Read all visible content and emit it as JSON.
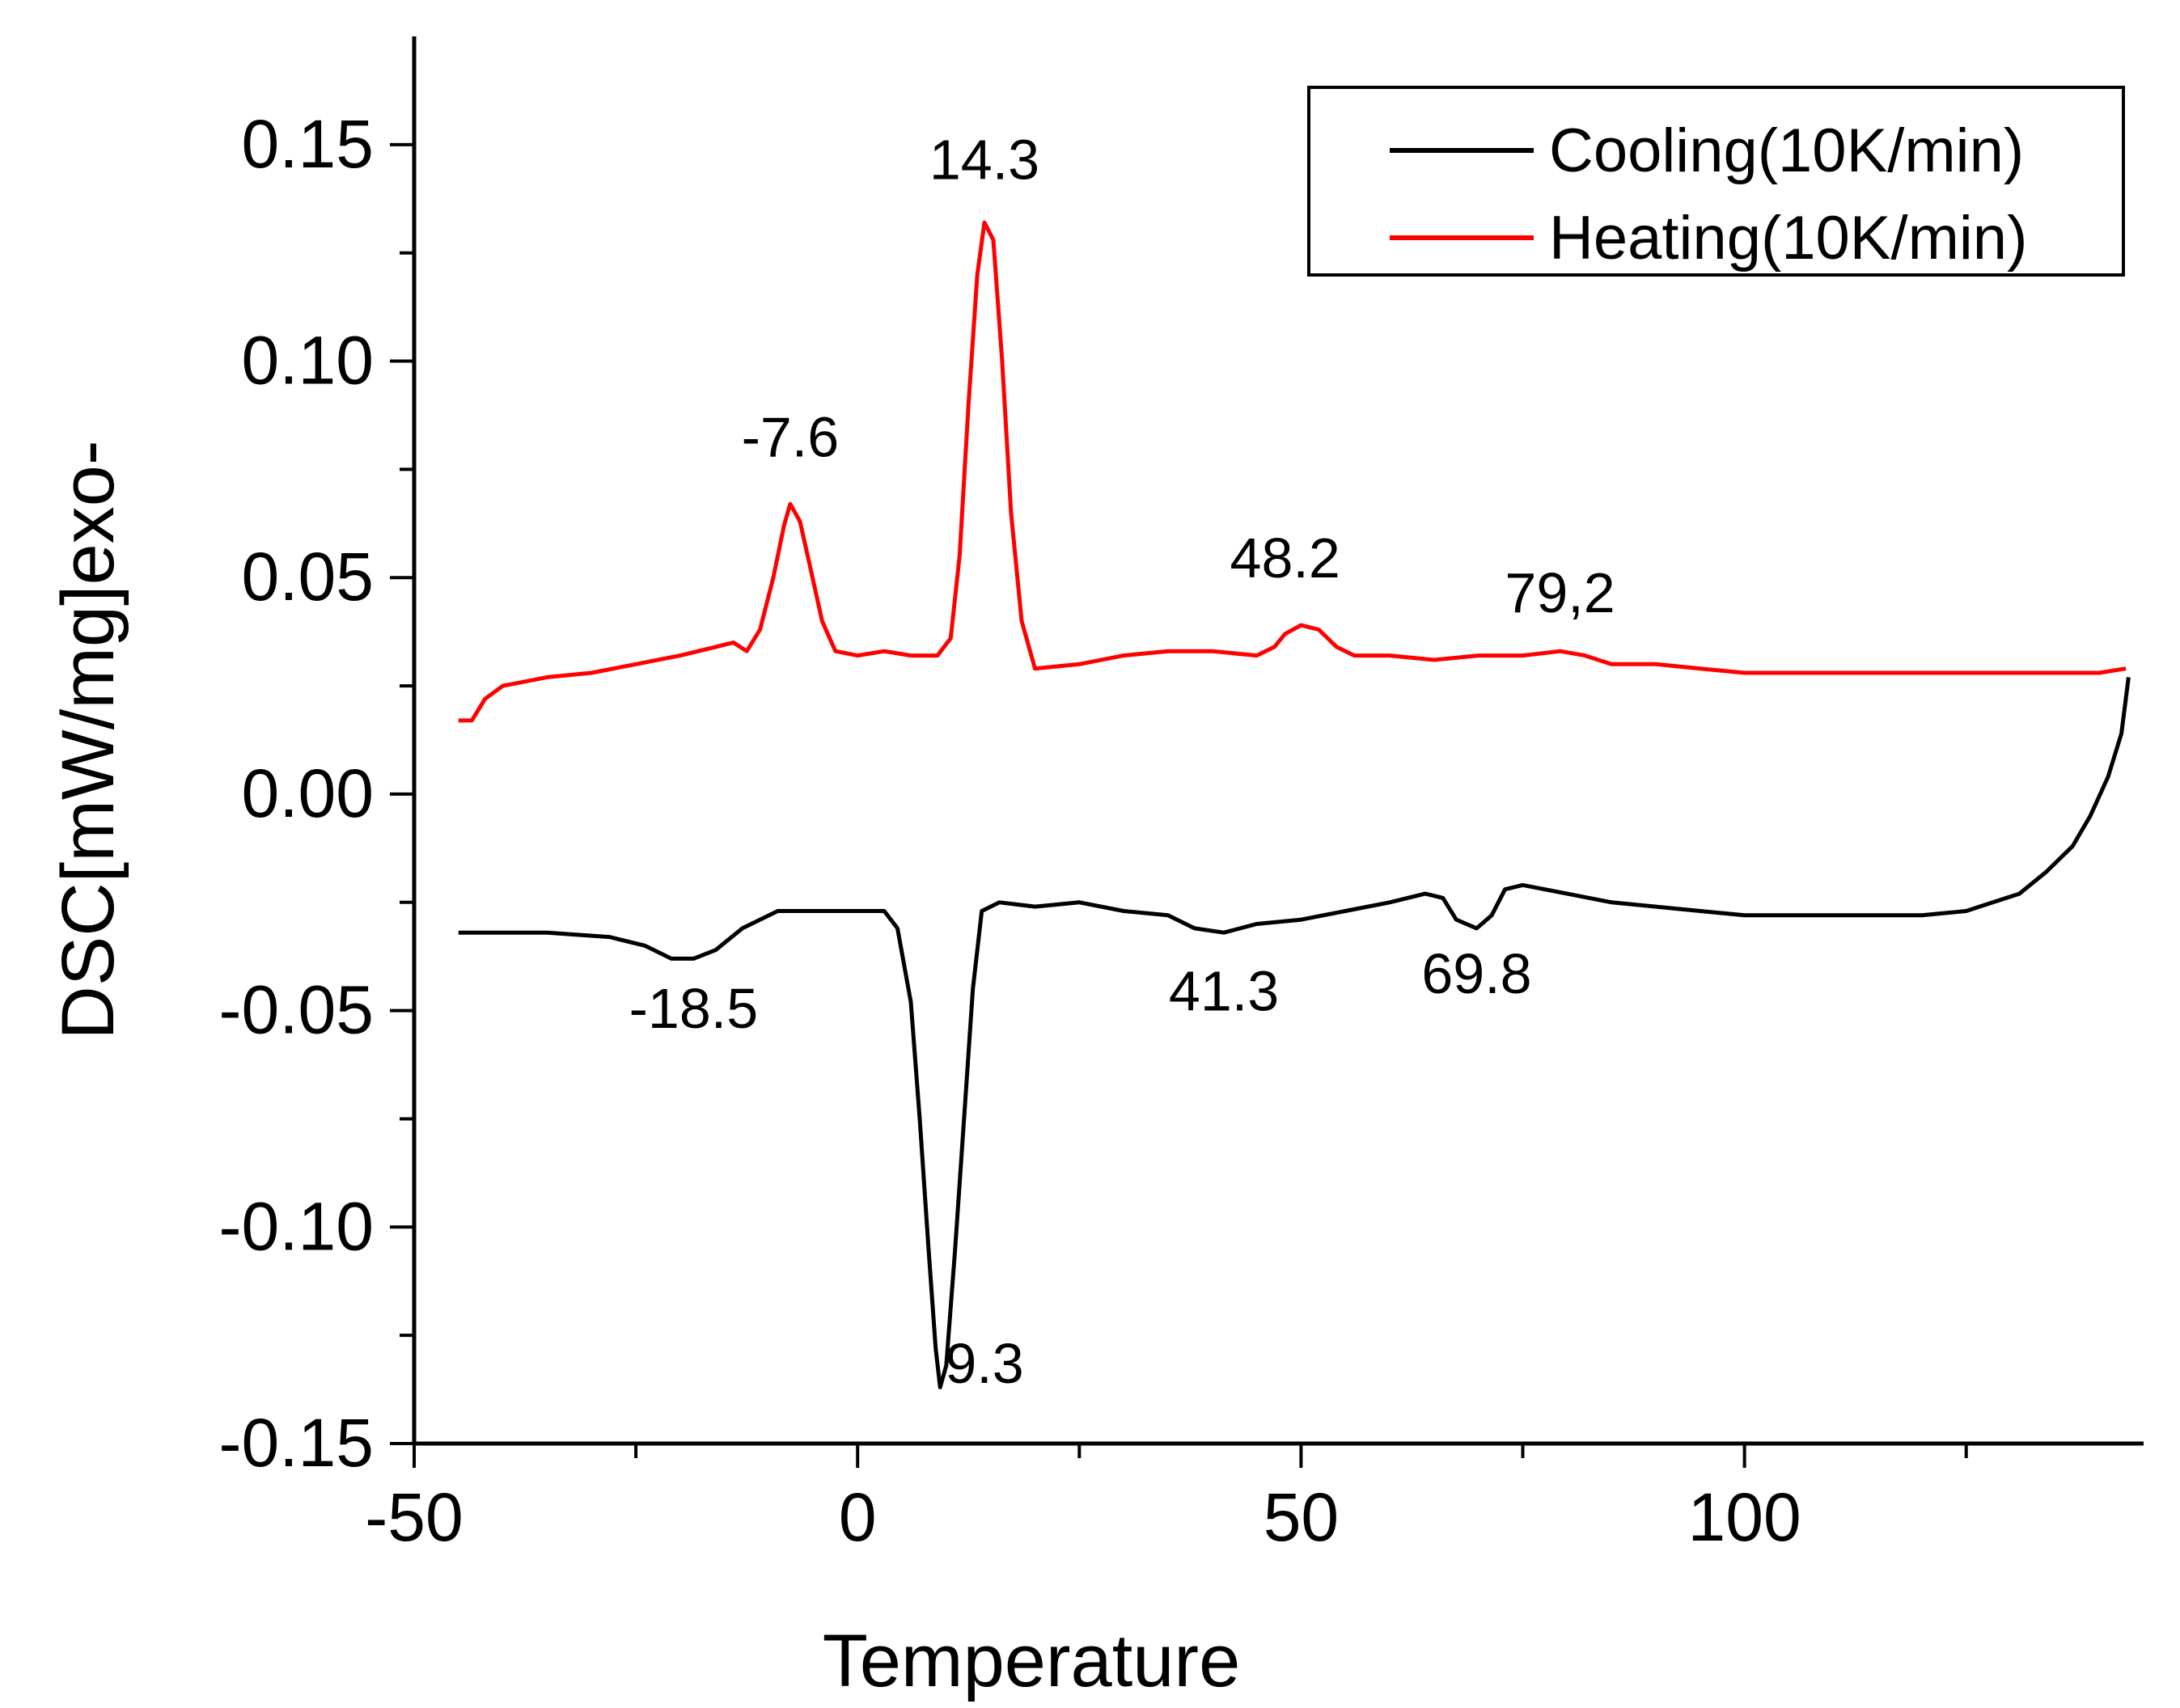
{
  "chart_data": {
    "type": "line",
    "title": "",
    "xlabel": "Temperature",
    "ylabel": "DSC[mW/mg]exo-",
    "xlim": [
      -50,
      145
    ],
    "ylim": [
      -0.15,
      0.175
    ],
    "x_ticks": [
      -50,
      0,
      50,
      100
    ],
    "x_tick_labels": [
      "-50",
      "0",
      "50",
      "100"
    ],
    "y_ticks": [
      0.15,
      0.1,
      0.05,
      0.0,
      -0.05,
      -0.1,
      -0.15
    ],
    "y_tick_labels": [
      "0.15",
      "0.10",
      "0.05",
      "0.00",
      "-0.05",
      "-0.10",
      "-0.15"
    ],
    "legend": {
      "position": "top-right",
      "entries": [
        "Cooling(10K/min)",
        "Heating(10K/min)"
      ]
    },
    "series": [
      {
        "name": "Cooling(10K/min)",
        "color": "#000000",
        "points": [
          [
            -45,
            -0.032
          ],
          [
            -35,
            -0.032
          ],
          [
            -28,
            -0.033
          ],
          [
            -24,
            -0.035
          ],
          [
            -21,
            -0.038
          ],
          [
            -18.5,
            -0.038
          ],
          [
            -16,
            -0.036
          ],
          [
            -13,
            -0.031
          ],
          [
            -9,
            -0.027
          ],
          [
            -5,
            -0.027
          ],
          [
            0,
            -0.027
          ],
          [
            3,
            -0.027
          ],
          [
            4.5,
            -0.031
          ],
          [
            6,
            -0.048
          ],
          [
            7,
            -0.075
          ],
          [
            8,
            -0.105
          ],
          [
            8.8,
            -0.128
          ],
          [
            9.3,
            -0.137
          ],
          [
            10,
            -0.132
          ],
          [
            11,
            -0.105
          ],
          [
            12,
            -0.075
          ],
          [
            13,
            -0.045
          ],
          [
            14,
            -0.027
          ],
          [
            16,
            -0.025
          ],
          [
            20,
            -0.026
          ],
          [
            25,
            -0.025
          ],
          [
            30,
            -0.027
          ],
          [
            35,
            -0.028
          ],
          [
            38,
            -0.031
          ],
          [
            41.3,
            -0.032
          ],
          [
            45,
            -0.03
          ],
          [
            50,
            -0.029
          ],
          [
            55,
            -0.027
          ],
          [
            60,
            -0.025
          ],
          [
            64,
            -0.023
          ],
          [
            66,
            -0.024
          ],
          [
            67.5,
            -0.029
          ],
          [
            69.8,
            -0.031
          ],
          [
            71.5,
            -0.028
          ],
          [
            73,
            -0.022
          ],
          [
            75,
            -0.021
          ],
          [
            80,
            -0.023
          ],
          [
            85,
            -0.025
          ],
          [
            90,
            -0.026
          ],
          [
            95,
            -0.027
          ],
          [
            100,
            -0.028
          ],
          [
            110,
            -0.028
          ],
          [
            120,
            -0.028
          ],
          [
            125,
            -0.027
          ],
          [
            128,
            -0.025
          ],
          [
            131,
            -0.023
          ],
          [
            134,
            -0.018
          ],
          [
            137,
            -0.012
          ],
          [
            139,
            -0.005
          ],
          [
            141,
            0.004
          ],
          [
            142.5,
            0.014
          ],
          [
            143.3,
            0.027
          ]
        ]
      },
      {
        "name": "Heating(10K/min)",
        "color": "#ff0000",
        "points": [
          [
            -45,
            0.017
          ],
          [
            -43.5,
            0.017
          ],
          [
            -42,
            0.022
          ],
          [
            -40,
            0.025
          ],
          [
            -35,
            0.027
          ],
          [
            -30,
            0.028
          ],
          [
            -25,
            0.03
          ],
          [
            -20,
            0.032
          ],
          [
            -16,
            0.034
          ],
          [
            -14,
            0.035
          ],
          [
            -12.5,
            0.033
          ],
          [
            -11,
            0.038
          ],
          [
            -9.5,
            0.05
          ],
          [
            -8.3,
            0.062
          ],
          [
            -7.6,
            0.067
          ],
          [
            -6.5,
            0.063
          ],
          [
            -5.3,
            0.052
          ],
          [
            -4,
            0.04
          ],
          [
            -2.5,
            0.033
          ],
          [
            0,
            0.032
          ],
          [
            3,
            0.033
          ],
          [
            6,
            0.032
          ],
          [
            9,
            0.032
          ],
          [
            10.5,
            0.036
          ],
          [
            11.5,
            0.055
          ],
          [
            12.5,
            0.09
          ],
          [
            13.5,
            0.12
          ],
          [
            14.3,
            0.132
          ],
          [
            15.3,
            0.128
          ],
          [
            16.3,
            0.1
          ],
          [
            17.3,
            0.065
          ],
          [
            18.5,
            0.04
          ],
          [
            20,
            0.029
          ],
          [
            25,
            0.03
          ],
          [
            30,
            0.032
          ],
          [
            35,
            0.033
          ],
          [
            40,
            0.033
          ],
          [
            45,
            0.032
          ],
          [
            47,
            0.034
          ],
          [
            48.2,
            0.037
          ],
          [
            50,
            0.039
          ],
          [
            52,
            0.038
          ],
          [
            54,
            0.034
          ],
          [
            56,
            0.032
          ],
          [
            60,
            0.032
          ],
          [
            65,
            0.031
          ],
          [
            70,
            0.032
          ],
          [
            75,
            0.032
          ],
          [
            79.2,
            0.033
          ],
          [
            82,
            0.032
          ],
          [
            85,
            0.03
          ],
          [
            90,
            0.03
          ],
          [
            95,
            0.029
          ],
          [
            100,
            0.028
          ],
          [
            110,
            0.028
          ],
          [
            120,
            0.028
          ],
          [
            130,
            0.028
          ],
          [
            140,
            0.028
          ],
          [
            143,
            0.029
          ]
        ]
      }
    ],
    "annotations": [
      {
        "text": "14.3",
        "x": 14.3,
        "y": 0.142
      },
      {
        "text": "-7.6",
        "x": -7.6,
        "y": 0.078
      },
      {
        "text": "48.2",
        "x": 48.2,
        "y": 0.05
      },
      {
        "text": "79,2",
        "x": 79.2,
        "y": 0.042
      },
      {
        "text": "-18.5",
        "x": -18.5,
        "y": -0.054
      },
      {
        "text": "41.3",
        "x": 41.3,
        "y": -0.05
      },
      {
        "text": "69.8",
        "x": 69.8,
        "y": -0.046
      },
      {
        "text": "9.3",
        "x": 14.3,
        "y": -0.136
      }
    ]
  }
}
